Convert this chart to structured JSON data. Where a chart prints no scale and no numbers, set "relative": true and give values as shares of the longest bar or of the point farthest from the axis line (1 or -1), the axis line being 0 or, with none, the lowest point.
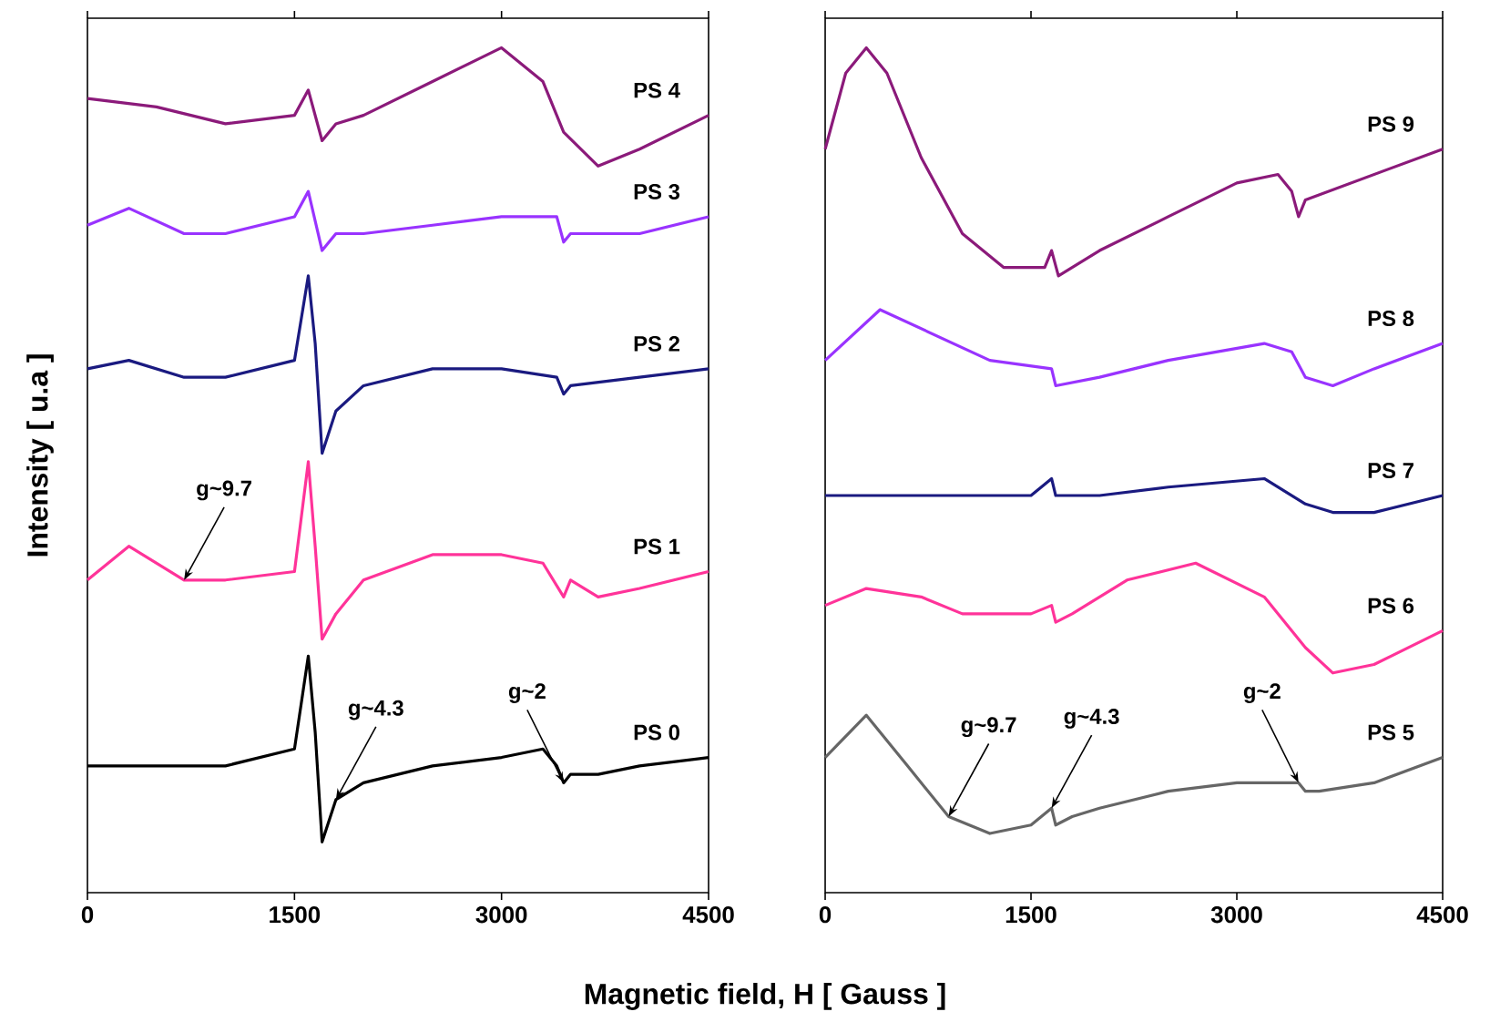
{
  "chart_data": [
    {
      "type": "line",
      "relative": true,
      "xlabel": "Magnetic field, H [ Gauss ]",
      "ylabel": "Intensity [ u.a ]",
      "xlim": [
        0,
        4500
      ],
      "xticks": [
        0,
        1500,
        3000,
        4500
      ],
      "tick_labels": "x",
      "marker": "none",
      "line_style": "solid",
      "annotations": [
        {
          "text": "g~9.7",
          "x": 700,
          "y": 0.37
        },
        {
          "text": "g~4.3",
          "x": 1800,
          "y": 0.11
        },
        {
          "text": "g~2",
          "x": 3450,
          "y": 0.13
        }
      ],
      "series": [
        {
          "name": "PS 0",
          "color": "#000000",
          "x": [
            0,
            1000,
            1500,
            1600,
            1650,
            1700,
            1800,
            2000,
            2500,
            3000,
            3300,
            3400,
            3450,
            3500,
            3700,
            4000,
            4500
          ],
          "values": [
            0.15,
            0.15,
            0.17,
            0.28,
            0.19,
            0.06,
            0.11,
            0.13,
            0.15,
            0.16,
            0.17,
            0.15,
            0.13,
            0.14,
            0.14,
            0.15,
            0.16
          ]
        },
        {
          "name": "PS 1",
          "color": "#ff3399",
          "x": [
            0,
            300,
            700,
            1000,
            1500,
            1600,
            1650,
            1700,
            1800,
            2000,
            2500,
            3000,
            3300,
            3450,
            3500,
            3700,
            4000,
            4500
          ],
          "values": [
            0.37,
            0.41,
            0.37,
            0.37,
            0.38,
            0.51,
            0.41,
            0.3,
            0.33,
            0.37,
            0.4,
            0.4,
            0.39,
            0.35,
            0.37,
            0.35,
            0.36,
            0.38
          ]
        },
        {
          "name": "PS 2",
          "color": "#1a1a80",
          "x": [
            0,
            300,
            700,
            1000,
            1500,
            1600,
            1650,
            1700,
            1800,
            2000,
            2500,
            3000,
            3400,
            3450,
            3500,
            4000,
            4500
          ],
          "values": [
            0.62,
            0.63,
            0.61,
            0.61,
            0.63,
            0.73,
            0.65,
            0.52,
            0.57,
            0.6,
            0.62,
            0.62,
            0.61,
            0.59,
            0.6,
            0.61,
            0.62
          ]
        },
        {
          "name": "PS 3",
          "color": "#9933ff",
          "x": [
            0,
            300,
            700,
            1000,
            1500,
            1600,
            1700,
            1800,
            2000,
            2500,
            3000,
            3400,
            3450,
            3500,
            4000,
            4500
          ],
          "values": [
            0.79,
            0.81,
            0.78,
            0.78,
            0.8,
            0.83,
            0.76,
            0.78,
            0.78,
            0.79,
            0.8,
            0.8,
            0.77,
            0.78,
            0.78,
            0.8
          ]
        },
        {
          "name": "PS 4",
          "color": "#8b1a7a",
          "x": [
            0,
            500,
            1000,
            1500,
            1600,
            1700,
            1800,
            2000,
            2500,
            3000,
            3300,
            3450,
            3700,
            4000,
            4500
          ],
          "values": [
            0.94,
            0.93,
            0.91,
            0.92,
            0.95,
            0.89,
            0.91,
            0.92,
            0.96,
            1,
            0.96,
            0.9,
            0.86,
            0.88,
            0.92
          ]
        }
      ]
    },
    {
      "type": "line",
      "relative": true,
      "xlim": [
        0,
        4500
      ],
      "xticks": [
        0,
        1500,
        3000,
        4500
      ],
      "tick_labels": "x",
      "marker": "none",
      "line_style": "solid",
      "annotations": [
        {
          "text": "g~9.7",
          "x": 900,
          "y": 0.09
        },
        {
          "text": "g~4.3",
          "x": 1650,
          "y": 0.1
        },
        {
          "text": "g~2",
          "x": 3450,
          "y": 0.13
        }
      ],
      "series": [
        {
          "name": "PS 5",
          "color": "#666666",
          "x": [
            0,
            300,
            600,
            900,
            1200,
            1500,
            1650,
            1680,
            1800,
            2000,
            2500,
            3000,
            3300,
            3450,
            3500,
            3600,
            4000,
            4500
          ],
          "values": [
            0.16,
            0.21,
            0.15,
            0.09,
            0.07,
            0.08,
            0.1,
            0.08,
            0.09,
            0.1,
            0.12,
            0.13,
            0.13,
            0.13,
            0.12,
            0.12,
            0.13,
            0.16
          ]
        },
        {
          "name": "PS 6",
          "color": "#ff3399",
          "x": [
            0,
            300,
            700,
            1000,
            1500,
            1650,
            1680,
            1800,
            2200,
            2700,
            3200,
            3500,
            3700,
            4000,
            4500
          ],
          "values": [
            0.34,
            0.36,
            0.35,
            0.33,
            0.33,
            0.34,
            0.32,
            0.33,
            0.37,
            0.39,
            0.35,
            0.29,
            0.26,
            0.27,
            0.31
          ]
        },
        {
          "name": "PS 7",
          "color": "#1a1a80",
          "x": [
            0,
            1000,
            1500,
            1650,
            1680,
            2000,
            2500,
            3200,
            3500,
            3700,
            4000,
            4500
          ],
          "values": [
            0.47,
            0.47,
            0.47,
            0.49,
            0.47,
            0.47,
            0.48,
            0.49,
            0.46,
            0.45,
            0.45,
            0.47
          ]
        },
        {
          "name": "PS 8",
          "color": "#9933ff",
          "x": [
            0,
            400,
            800,
            1200,
            1650,
            1680,
            2000,
            2500,
            3200,
            3400,
            3500,
            3700,
            4000,
            4500
          ],
          "values": [
            0.63,
            0.69,
            0.66,
            0.63,
            0.62,
            0.6,
            0.61,
            0.63,
            0.65,
            0.64,
            0.61,
            0.6,
            0.62,
            0.65
          ]
        },
        {
          "name": "PS 9",
          "color": "#8b1a7a",
          "x": [
            0,
            150,
            300,
            450,
            700,
            1000,
            1300,
            1600,
            1650,
            1700,
            2000,
            2500,
            3000,
            3300,
            3400,
            3450,
            3500,
            4000,
            4500
          ],
          "values": [
            0.88,
            0.97,
            1,
            0.97,
            0.87,
            0.78,
            0.74,
            0.74,
            0.76,
            0.73,
            0.76,
            0.8,
            0.84,
            0.85,
            0.83,
            0.8,
            0.82,
            0.85,
            0.88
          ]
        }
      ]
    }
  ]
}
